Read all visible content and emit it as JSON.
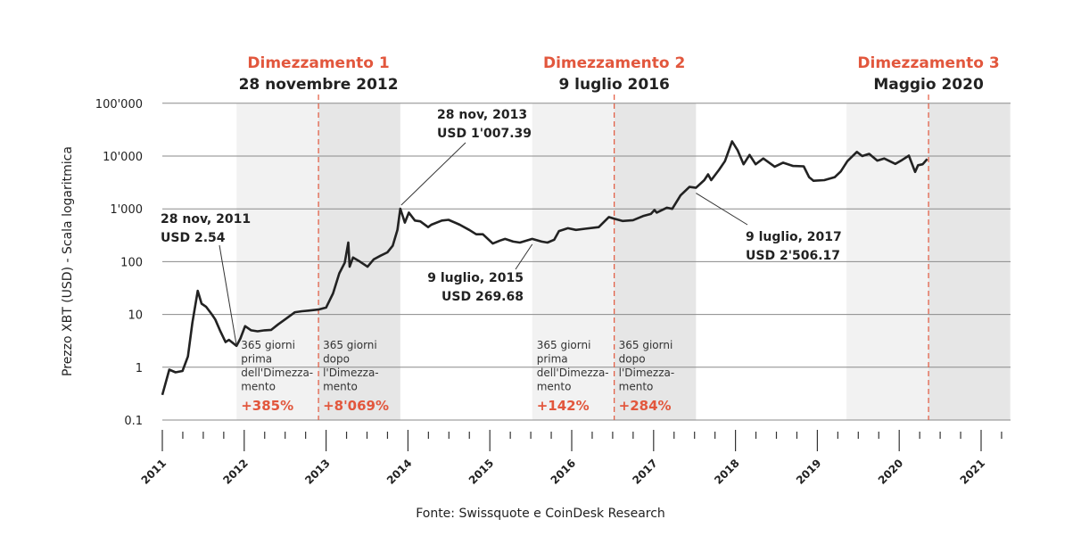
{
  "chart_data": {
    "type": "line",
    "title": "",
    "ylabel": "Prezzo XBT (USD) - Scala logaritmica",
    "xlabel": "",
    "yscale": "log",
    "ylim": [
      0.1,
      100000
    ],
    "xlim": [
      "2011-01-01",
      "2021-03-31"
    ],
    "grid": "horizontal",
    "yticks": [
      "0.1",
      "1",
      "10",
      "100",
      "1'000",
      "10'000",
      "100'000"
    ],
    "ytick_values": [
      0.1,
      1,
      10,
      100,
      1000,
      10000,
      100000
    ],
    "xticks": [
      "2011",
      "2012",
      "2013",
      "2014",
      "2015",
      "2016",
      "2017",
      "2018",
      "2019",
      "2020",
      "2021"
    ],
    "line_color": "#222222",
    "accent_color": "#e2573d",
    "halvings": [
      {
        "label": "Dimezzamento 1",
        "date_label": "28 novembre 2012",
        "date": "2012-11-28"
      },
      {
        "label": "Dimezzamento 2",
        "date_label": "9 luglio 2016",
        "date": "2016-07-09"
      },
      {
        "label": "Dimezzamento 3",
        "date_label": "Maggio 2020",
        "date": "2020-05-11"
      }
    ],
    "periods": [
      {
        "start": "2011-11-28",
        "end": "2012-11-28",
        "lines": [
          "365 giorni",
          "prima",
          "dell'Dimezza-",
          "mento"
        ],
        "change": "+385%",
        "shade": "#f2f2f2"
      },
      {
        "start": "2012-11-28",
        "end": "2013-11-28",
        "lines": [
          "365 giorni",
          "dopo",
          "l'Dimezza-",
          "mento"
        ],
        "change": "+8'069%",
        "shade": "#e6e6e6"
      },
      {
        "start": "2015-07-09",
        "end": "2016-07-09",
        "lines": [
          "365 giorni",
          "prima",
          "dell'Dimezza-",
          "mento"
        ],
        "change": "+142%",
        "shade": "#f2f2f2"
      },
      {
        "start": "2016-07-09",
        "end": "2017-07-09",
        "lines": [
          "365 giorni",
          "dopo",
          "l'Dimezza-",
          "mento"
        ],
        "change": "+284%",
        "shade": "#e6e6e6"
      },
      {
        "start": "2019-05-11",
        "end": "2020-05-11",
        "lines": [],
        "change": "",
        "shade": "#f2f2f2"
      },
      {
        "start": "2020-05-11",
        "end": "2021-05-11",
        "lines": [],
        "change": "",
        "shade": "#e6e6e6"
      }
    ],
    "annotations": [
      {
        "date": "2011-11-28",
        "value": 2.54,
        "line1": "28 nov, 2011",
        "line2": "USD 2.54"
      },
      {
        "date": "2013-11-28",
        "value": 1007.39,
        "line1": "28 nov, 2013",
        "line2": "USD 1'007.39"
      },
      {
        "date": "2015-07-09",
        "value": 269.68,
        "line1": "9 luglio, 2015",
        "line2": "USD 269.68"
      },
      {
        "date": "2017-07-09",
        "value": 2506.17,
        "line1": "9 luglio, 2017",
        "line2": "USD 2'506.17"
      }
    ],
    "series": [
      {
        "x": [
          "2011-01-01",
          "2011-02-01",
          "2011-03-01",
          "2011-04-01",
          "2011-04-25",
          "2011-05-15",
          "2011-06-08",
          "2011-06-25",
          "2011-07-15",
          "2011-08-10",
          "2011-08-25",
          "2011-09-15",
          "2011-10-10",
          "2011-10-25",
          "2011-11-28",
          "2011-12-15",
          "2012-01-05",
          "2012-02-01",
          "2012-03-01",
          "2012-04-01",
          "2012-05-01",
          "2012-06-01",
          "2012-07-01",
          "2012-08-15",
          "2012-09-15",
          "2012-10-15",
          "2012-11-28",
          "2013-01-01",
          "2013-02-01",
          "2013-03-01",
          "2013-03-25",
          "2013-04-10",
          "2013-04-16",
          "2013-05-01",
          "2013-06-01",
          "2013-07-05",
          "2013-08-01",
          "2013-09-01",
          "2013-10-01",
          "2013-10-25",
          "2013-11-15",
          "2013-11-28",
          "2013-12-10",
          "2013-12-18",
          "2014-01-05",
          "2014-02-01",
          "2014-02-25",
          "2014-04-01",
          "2014-04-15",
          "2014-06-01",
          "2014-07-01",
          "2014-08-20",
          "2014-10-01",
          "2014-11-01",
          "2014-12-01",
          "2015-01-14",
          "2015-02-15",
          "2015-03-10",
          "2015-04-15",
          "2015-05-15",
          "2015-07-09",
          "2015-08-20",
          "2015-09-15",
          "2015-10-15",
          "2015-11-05",
          "2015-12-15",
          "2016-01-20",
          "2016-03-01",
          "2016-05-01",
          "2016-06-15",
          "2016-07-09",
          "2016-08-15",
          "2016-10-01",
          "2016-11-15",
          "2016-12-20",
          "2017-01-05",
          "2017-01-15",
          "2017-03-01",
          "2017-03-25",
          "2017-05-01",
          "2017-06-10",
          "2017-07-09",
          "2017-08-15",
          "2017-09-01",
          "2017-09-15",
          "2017-10-20",
          "2017-11-15",
          "2017-12-17",
          "2018-01-10",
          "2018-02-06",
          "2018-03-05",
          "2018-04-01",
          "2018-05-05",
          "2018-06-25",
          "2018-08-01",
          "2018-09-15",
          "2018-11-01",
          "2018-11-25",
          "2018-12-15",
          "2019-02-01",
          "2019-03-20",
          "2019-04-15",
          "2019-05-15",
          "2019-06-26",
          "2019-07-20",
          "2019-08-20",
          "2019-09-25",
          "2019-10-26",
          "2019-12-15",
          "2020-01-15",
          "2020-02-13",
          "2020-03-12",
          "2020-03-25",
          "2020-04-15",
          "2020-05-05"
        ],
        "values": [
          0.3,
          0.9,
          0.8,
          0.85,
          1.6,
          7,
          28,
          16,
          14,
          10,
          8,
          5,
          3,
          3.3,
          2.54,
          3.5,
          6,
          5,
          4.8,
          5,
          5.1,
          6.5,
          8,
          11,
          11.5,
          11.8,
          12.4,
          13.5,
          25,
          60,
          95,
          230,
          80,
          120,
          100,
          80,
          110,
          130,
          150,
          200,
          400,
          1007.39,
          700,
          550,
          850,
          600,
          580,
          450,
          500,
          600,
          620,
          500,
          400,
          330,
          330,
          220,
          250,
          270,
          240,
          230,
          269.68,
          240,
          230,
          260,
          380,
          430,
          400,
          420,
          450,
          700,
          650,
          590,
          610,
          730,
          800,
          950,
          850,
          1050,
          1000,
          1800,
          2600,
          2506.17,
          3500,
          4500,
          3500,
          5500,
          8000,
          19000,
          13000,
          7000,
          10500,
          7000,
          9000,
          6300,
          7500,
          6500,
          6400,
          4000,
          3400,
          3500,
          4000,
          5100,
          8000,
          12000,
          10000,
          11000,
          8200,
          9000,
          7100,
          8500,
          10200,
          5000,
          6700,
          7000,
          8800
        ]
      }
    ]
  },
  "source": "Fonte: Swissquote e CoinDesk Research"
}
